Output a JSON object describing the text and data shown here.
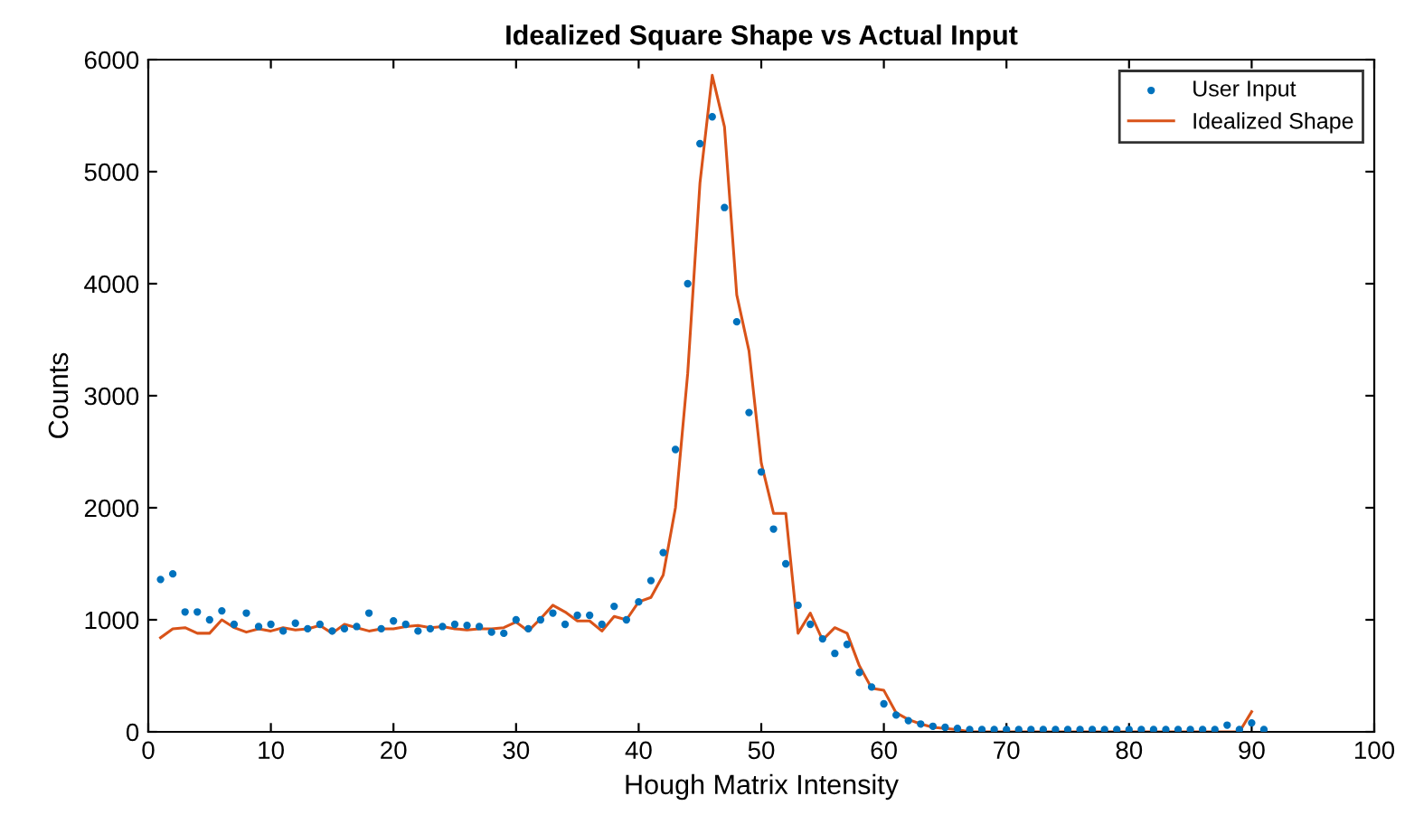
{
  "chart_data": {
    "type": "line",
    "title": "Idealized Square Shape vs Actual Input",
    "xlabel": "Hough Matrix Intensity",
    "ylabel": "Counts",
    "x": [
      1,
      2,
      3,
      4,
      5,
      6,
      7,
      8,
      9,
      10,
      11,
      12,
      13,
      14,
      15,
      16,
      17,
      18,
      19,
      20,
      21,
      22,
      23,
      24,
      25,
      26,
      27,
      28,
      29,
      30,
      31,
      32,
      33,
      34,
      35,
      36,
      37,
      38,
      39,
      40,
      41,
      42,
      43,
      44,
      45,
      46,
      47,
      48,
      49,
      50,
      51,
      52,
      53,
      54,
      55,
      56,
      57,
      58,
      59,
      60,
      61,
      62,
      63,
      64,
      65,
      66,
      67,
      68,
      69,
      70,
      71,
      72,
      73,
      74,
      75,
      76,
      77,
      78,
      79,
      80,
      81,
      82,
      83,
      84,
      85,
      86,
      87,
      88,
      89,
      90,
      91
    ],
    "series": [
      {
        "name": "User Input",
        "type": "scatter",
        "marker": "circle",
        "color": "#0072bd",
        "values": [
          1360,
          1410,
          1070,
          1070,
          1000,
          1080,
          960,
          1060,
          940,
          960,
          900,
          970,
          920,
          960,
          900,
          920,
          940,
          1060,
          920,
          990,
          960,
          900,
          920,
          940,
          960,
          950,
          940,
          890,
          880,
          1000,
          920,
          1000,
          1060,
          960,
          1040,
          1040,
          960,
          1120,
          1000,
          1160,
          1350,
          1600,
          2520,
          4000,
          5250,
          5490,
          4680,
          3660,
          2850,
          2320,
          1810,
          1500,
          1130,
          960,
          830,
          700,
          780,
          530,
          400,
          250,
          150,
          100,
          70,
          50,
          40,
          30,
          20,
          20,
          20,
          20,
          20,
          20,
          20,
          20,
          20,
          20,
          20,
          20,
          20,
          20,
          20,
          20,
          20,
          20,
          20,
          20,
          20,
          60,
          20,
          80,
          20
        ]
      },
      {
        "name": "Idealized Shape",
        "color": "#d95319",
        "x": [
          1,
          2,
          3,
          4,
          5,
          6,
          7,
          8,
          9,
          10,
          11,
          12,
          13,
          14,
          15,
          16,
          17,
          18,
          19,
          20,
          21,
          22,
          23,
          24,
          25,
          26,
          27,
          28,
          29,
          30,
          31,
          32,
          33,
          34,
          35,
          36,
          37,
          38,
          39,
          40,
          41,
          42,
          43,
          44,
          45,
          46,
          47,
          48,
          49,
          50,
          51,
          52,
          53,
          54,
          55,
          56,
          57,
          58,
          59,
          60,
          61,
          62,
          63,
          64,
          65,
          66,
          67,
          68,
          69,
          70,
          71,
          72,
          73,
          74,
          75,
          76,
          77,
          78,
          79,
          80,
          81,
          82,
          83,
          84,
          85,
          86,
          87,
          88,
          89,
          90
        ],
        "values": [
          840,
          920,
          930,
          880,
          880,
          1000,
          930,
          890,
          920,
          900,
          930,
          910,
          920,
          950,
          880,
          960,
          930,
          900,
          920,
          920,
          940,
          950,
          930,
          940,
          920,
          910,
          920,
          920,
          930,
          980,
          900,
          1010,
          1130,
          1070,
          990,
          990,
          900,
          1030,
          1000,
          1160,
          1200,
          1400,
          2000,
          3200,
          4900,
          5860,
          5400,
          3900,
          3400,
          2400,
          1950,
          1950,
          880,
          1060,
          820,
          930,
          880,
          590,
          390,
          370,
          170,
          110,
          70,
          40,
          30,
          20,
          0,
          0,
          0,
          0,
          0,
          0,
          0,
          0,
          0,
          0,
          0,
          0,
          0,
          0,
          0,
          0,
          0,
          0,
          0,
          0,
          0,
          0,
          0,
          180
        ]
      }
    ],
    "xlim": [
      0,
      100
    ],
    "xticks": [
      0,
      10,
      20,
      30,
      40,
      50,
      60,
      70,
      80,
      90,
      100
    ],
    "ylim": [
      0,
      6000
    ],
    "yticks": [
      0,
      1000,
      2000,
      3000,
      4000,
      5000,
      6000
    ],
    "grid": false,
    "legend": "top right"
  }
}
